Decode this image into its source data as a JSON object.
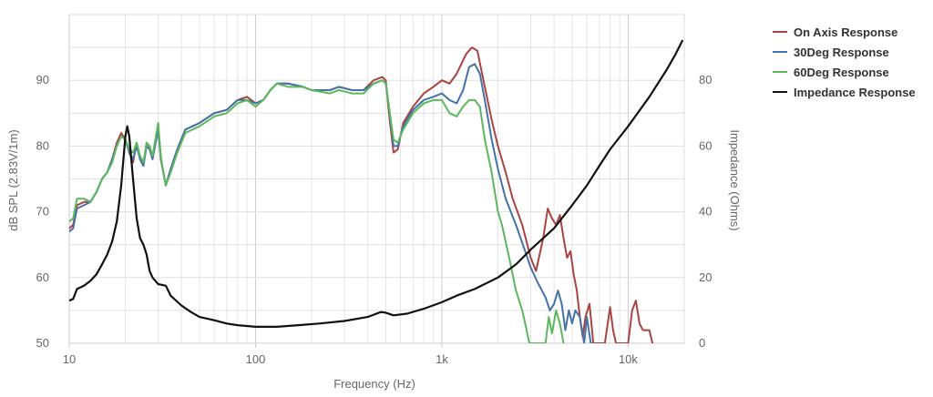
{
  "chart_data": {
    "type": "line",
    "xlabel": "Frequency (Hz)",
    "ylabel": "dB SPL (2.83V/1m)",
    "y2label": "Impedance (Ohms)",
    "x_scale": "log",
    "xlim": [
      10,
      20000
    ],
    "ylim": [
      50,
      100
    ],
    "y2lim": [
      0,
      100
    ],
    "x_ticks": [
      {
        "value": 10,
        "label": "10"
      },
      {
        "value": 100,
        "label": "100"
      },
      {
        "value": 1000,
        "label": "1k"
      },
      {
        "value": 10000,
        "label": "10k"
      }
    ],
    "y_ticks": [
      {
        "value": 50,
        "label": "50"
      },
      {
        "value": 60,
        "label": "60"
      },
      {
        "value": 70,
        "label": "70"
      },
      {
        "value": 80,
        "label": "80"
      },
      {
        "value": 90,
        "label": "90"
      }
    ],
    "y2_ticks": [
      {
        "value": 0,
        "label": "0"
      },
      {
        "value": 20,
        "label": "20"
      },
      {
        "value": 40,
        "label": "40"
      },
      {
        "value": 60,
        "label": "60"
      },
      {
        "value": 80,
        "label": "80"
      }
    ],
    "grid": true,
    "legend_position": "top-right",
    "series": [
      {
        "name": "On Axis Response",
        "axis": "left",
        "color": "#a94442",
        "points": [
          [
            10,
            67.5
          ],
          [
            10.5,
            68
          ],
          [
            11,
            71
          ],
          [
            12,
            71.5
          ],
          [
            13,
            71.5
          ],
          [
            14,
            73
          ],
          [
            15,
            75
          ],
          [
            16,
            76
          ],
          [
            17,
            78
          ],
          [
            18,
            80.5
          ],
          [
            19,
            82
          ],
          [
            20,
            81
          ],
          [
            21,
            79
          ],
          [
            22,
            77.5
          ],
          [
            23,
            80.5
          ],
          [
            24,
            78
          ],
          [
            25,
            77
          ],
          [
            26,
            80.5
          ],
          [
            27,
            80
          ],
          [
            28,
            78
          ],
          [
            30,
            83
          ],
          [
            31,
            78
          ],
          [
            32,
            76
          ],
          [
            33,
            74
          ],
          [
            35,
            76.5
          ],
          [
            38,
            79.5
          ],
          [
            42,
            82.5
          ],
          [
            50,
            83.5
          ],
          [
            60,
            85
          ],
          [
            70,
            85.5
          ],
          [
            80,
            87
          ],
          [
            90,
            87.5
          ],
          [
            100,
            86.5
          ],
          [
            110,
            87
          ],
          [
            120,
            88.5
          ],
          [
            130,
            89.5
          ],
          [
            150,
            89.5
          ],
          [
            180,
            89
          ],
          [
            200,
            88.5
          ],
          [
            250,
            88.5
          ],
          [
            280,
            89
          ],
          [
            330,
            88.5
          ],
          [
            380,
            88.5
          ],
          [
            430,
            90
          ],
          [
            480,
            90.5
          ],
          [
            500,
            90
          ],
          [
            520,
            85
          ],
          [
            550,
            79
          ],
          [
            580,
            79.5
          ],
          [
            620,
            83.5
          ],
          [
            700,
            86
          ],
          [
            800,
            88
          ],
          [
            900,
            89
          ],
          [
            1000,
            90
          ],
          [
            1100,
            89.5
          ],
          [
            1200,
            91
          ],
          [
            1350,
            94
          ],
          [
            1450,
            95
          ],
          [
            1550,
            94.5
          ],
          [
            1700,
            89
          ],
          [
            1850,
            84
          ],
          [
            2000,
            80
          ],
          [
            2200,
            76
          ],
          [
            2400,
            72
          ],
          [
            2700,
            68
          ],
          [
            3000,
            63
          ],
          [
            3200,
            61
          ],
          [
            3500,
            66
          ],
          [
            3700,
            70.5
          ],
          [
            3900,
            69
          ],
          [
            4100,
            68
          ],
          [
            4300,
            69.5
          ],
          [
            4500,
            66
          ],
          [
            4700,
            63
          ],
          [
            4900,
            64
          ],
          [
            5100,
            60.5
          ],
          [
            5300,
            58
          ],
          [
            5500,
            54
          ],
          [
            5700,
            51
          ],
          [
            5900,
            54
          ],
          [
            6200,
            56
          ],
          [
            6500,
            50
          ],
          [
            7000,
            50
          ],
          [
            7500,
            50
          ],
          [
            8000,
            55.5
          ],
          [
            8300,
            52
          ],
          [
            8600,
            50
          ],
          [
            9000,
            50
          ],
          [
            9500,
            50
          ],
          [
            10000,
            50
          ],
          [
            10500,
            55
          ],
          [
            11000,
            56.5
          ],
          [
            11500,
            53
          ],
          [
            12000,
            52
          ],
          [
            12500,
            52
          ],
          [
            13000,
            52
          ],
          [
            13500,
            50
          ]
        ]
      },
      {
        "name": "30Deg Response",
        "axis": "left",
        "color": "#4572a7",
        "points": [
          [
            10,
            67
          ],
          [
            10.5,
            67.5
          ],
          [
            11,
            70.5
          ],
          [
            12,
            71
          ],
          [
            13,
            71.5
          ],
          [
            14,
            73
          ],
          [
            15,
            75
          ],
          [
            16,
            76
          ],
          [
            17,
            78
          ],
          [
            18,
            80
          ],
          [
            19,
            81.5
          ],
          [
            20,
            81
          ],
          [
            21,
            79
          ],
          [
            22,
            78
          ],
          [
            23,
            80
          ],
          [
            24,
            78
          ],
          [
            25,
            77
          ],
          [
            26,
            80
          ],
          [
            27,
            79.5
          ],
          [
            28,
            78
          ],
          [
            30,
            82.5
          ],
          [
            31,
            78
          ],
          [
            32,
            76
          ],
          [
            33,
            74
          ],
          [
            35,
            76.5
          ],
          [
            38,
            79.5
          ],
          [
            42,
            82.5
          ],
          [
            50,
            83.5
          ],
          [
            60,
            85
          ],
          [
            70,
            85.5
          ],
          [
            80,
            87
          ],
          [
            90,
            87
          ],
          [
            100,
            86.5
          ],
          [
            110,
            87
          ],
          [
            120,
            88.5
          ],
          [
            130,
            89.5
          ],
          [
            150,
            89.5
          ],
          [
            180,
            89
          ],
          [
            200,
            88.5
          ],
          [
            250,
            88.5
          ],
          [
            280,
            89
          ],
          [
            330,
            88.5
          ],
          [
            380,
            88.5
          ],
          [
            430,
            89.5
          ],
          [
            480,
            90
          ],
          [
            500,
            89.5
          ],
          [
            520,
            86
          ],
          [
            550,
            80
          ],
          [
            580,
            80
          ],
          [
            620,
            83
          ],
          [
            700,
            85.5
          ],
          [
            800,
            87
          ],
          [
            900,
            87.5
          ],
          [
            1000,
            88
          ],
          [
            1100,
            87
          ],
          [
            1200,
            86.5
          ],
          [
            1300,
            88.5
          ],
          [
            1400,
            92
          ],
          [
            1500,
            92.5
          ],
          [
            1600,
            91
          ],
          [
            1700,
            87
          ],
          [
            1850,
            81
          ],
          [
            2000,
            76.5
          ],
          [
            2200,
            72
          ],
          [
            2500,
            68
          ],
          [
            2800,
            64
          ],
          [
            3000,
            61.5
          ],
          [
            3300,
            59
          ],
          [
            3600,
            57
          ],
          [
            3800,
            55
          ],
          [
            4000,
            56
          ],
          [
            4200,
            58
          ],
          [
            4400,
            56
          ],
          [
            4600,
            52
          ],
          [
            4800,
            55
          ],
          [
            5000,
            53
          ],
          [
            5200,
            55
          ],
          [
            5500,
            54
          ],
          [
            5800,
            50
          ],
          [
            6000,
            54
          ],
          [
            6300,
            50
          ],
          [
            6500,
            50
          ]
        ]
      },
      {
        "name": "60Deg Response",
        "axis": "left",
        "color": "#5cb85c",
        "points": [
          [
            10,
            68.5
          ],
          [
            10.5,
            69
          ],
          [
            11,
            72
          ],
          [
            12,
            72
          ],
          [
            13,
            71.5
          ],
          [
            14,
            73
          ],
          [
            15,
            75
          ],
          [
            16,
            76
          ],
          [
            17,
            77.5
          ],
          [
            18,
            80
          ],
          [
            19,
            81.5
          ],
          [
            20,
            81
          ],
          [
            21,
            79.5
          ],
          [
            22,
            79
          ],
          [
            23,
            80.5
          ],
          [
            24,
            78.5
          ],
          [
            25,
            77.5
          ],
          [
            26,
            80.5
          ],
          [
            27,
            80
          ],
          [
            28,
            78.5
          ],
          [
            30,
            83.5
          ],
          [
            31,
            78.5
          ],
          [
            32,
            76
          ],
          [
            33,
            74
          ],
          [
            35,
            76
          ],
          [
            38,
            79
          ],
          [
            42,
            82
          ],
          [
            50,
            83
          ],
          [
            60,
            84.5
          ],
          [
            70,
            85
          ],
          [
            80,
            86.5
          ],
          [
            90,
            87
          ],
          [
            100,
            86
          ],
          [
            110,
            87
          ],
          [
            120,
            88.5
          ],
          [
            130,
            89.5
          ],
          [
            150,
            89
          ],
          [
            180,
            89
          ],
          [
            200,
            88.5
          ],
          [
            250,
            88
          ],
          [
            280,
            88.5
          ],
          [
            330,
            88
          ],
          [
            380,
            88
          ],
          [
            430,
            89.5
          ],
          [
            480,
            90
          ],
          [
            500,
            89.5
          ],
          [
            520,
            86
          ],
          [
            550,
            81
          ],
          [
            580,
            80.5
          ],
          [
            620,
            82.5
          ],
          [
            700,
            85
          ],
          [
            800,
            86.5
          ],
          [
            900,
            87
          ],
          [
            1000,
            87
          ],
          [
            1100,
            85
          ],
          [
            1200,
            84.5
          ],
          [
            1300,
            86
          ],
          [
            1400,
            87
          ],
          [
            1500,
            87
          ],
          [
            1600,
            86
          ],
          [
            1700,
            81
          ],
          [
            1850,
            76
          ],
          [
            2000,
            70
          ],
          [
            2100,
            68
          ],
          [
            2300,
            63
          ],
          [
            2500,
            58
          ],
          [
            2700,
            55
          ],
          [
            2850,
            52
          ],
          [
            2950,
            50
          ],
          [
            3300,
            50
          ],
          [
            3600,
            50
          ],
          [
            3750,
            54
          ],
          [
            3900,
            51.5
          ],
          [
            4100,
            55
          ],
          [
            4300,
            53
          ],
          [
            4500,
            50
          ]
        ]
      },
      {
        "name": "Impedance Response",
        "axis": "right",
        "color": "#111111",
        "points": [
          [
            10,
            13
          ],
          [
            10.5,
            13.5
          ],
          [
            11,
            16.5
          ],
          [
            12,
            17.5
          ],
          [
            13,
            19
          ],
          [
            14,
            21
          ],
          [
            15,
            24
          ],
          [
            16,
            27
          ],
          [
            17,
            31
          ],
          [
            18,
            37
          ],
          [
            19,
            48
          ],
          [
            20,
            63
          ],
          [
            20.5,
            66
          ],
          [
            21,
            63
          ],
          [
            22,
            50
          ],
          [
            23,
            38
          ],
          [
            24,
            32
          ],
          [
            25,
            30
          ],
          [
            26,
            27
          ],
          [
            27,
            22
          ],
          [
            28,
            20
          ],
          [
            30,
            18
          ],
          [
            33,
            17.5
          ],
          [
            35,
            14.5
          ],
          [
            40,
            11.5
          ],
          [
            45,
            9.5
          ],
          [
            50,
            8
          ],
          [
            60,
            7
          ],
          [
            70,
            6
          ],
          [
            80,
            5.5
          ],
          [
            100,
            5
          ],
          [
            130,
            5
          ],
          [
            170,
            5.5
          ],
          [
            220,
            6
          ],
          [
            300,
            6.8
          ],
          [
            400,
            8
          ],
          [
            470,
            9.5
          ],
          [
            500,
            9.3
          ],
          [
            550,
            8.5
          ],
          [
            650,
            9
          ],
          [
            800,
            10.5
          ],
          [
            1000,
            12.5
          ],
          [
            1200,
            14.5
          ],
          [
            1500,
            16.5
          ],
          [
            2000,
            20
          ],
          [
            2500,
            24
          ],
          [
            3000,
            28.5
          ],
          [
            4000,
            35
          ],
          [
            5000,
            42
          ],
          [
            6000,
            48
          ],
          [
            7000,
            54
          ],
          [
            8000,
            59
          ],
          [
            10000,
            66
          ],
          [
            13000,
            75
          ],
          [
            16000,
            83
          ],
          [
            18000,
            88
          ],
          [
            19500,
            92
          ]
        ]
      }
    ]
  }
}
